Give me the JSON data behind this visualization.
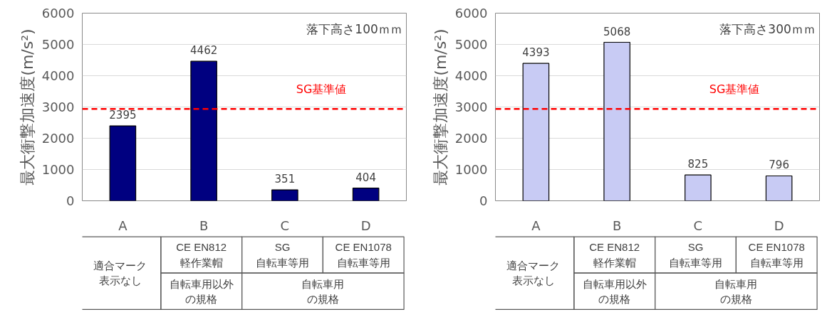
{
  "chart_data": [
    {
      "type": "bar",
      "title": "落下高さ100ｍｍ",
      "ylabel": "最大衝撃加速度(m/s²)",
      "categories": [
        "A",
        "B",
        "C",
        "D"
      ],
      "values": [
        2395,
        4462,
        351,
        404
      ],
      "color": "#000080",
      "ylim": [
        0,
        6000
      ],
      "yticks": [
        0,
        1000,
        2000,
        3000,
        4000,
        5000,
        6000
      ],
      "grid": "y",
      "data_labels": true,
      "ref_lines": [
        {
          "axis": "y",
          "value": 2940,
          "label": "SG基準値",
          "color": "#ff0000",
          "line_style": "dashed"
        }
      ],
      "annotations": [
        "適合マーク表示なし",
        "CE EN812 軽作業帽",
        "SG 自転車等用",
        "CE EN1078 自転車等用",
        "自転車用以外の規格",
        "自転車用の規格"
      ]
    },
    {
      "type": "bar",
      "title": "落下高さ300ｍｍ",
      "ylabel": "最大衝撃加速度(m/s²)",
      "categories": [
        "A",
        "B",
        "C",
        "D"
      ],
      "values": [
        4393,
        5068,
        825,
        796
      ],
      "color": "#c8cbf4",
      "ylim": [
        0,
        6000
      ],
      "yticks": [
        0,
        1000,
        2000,
        3000,
        4000,
        5000,
        6000
      ],
      "grid": "y",
      "data_labels": true,
      "ref_lines": [
        {
          "axis": "y",
          "value": 2940,
          "label": "SG基準値",
          "color": "#ff0000",
          "line_style": "dashed"
        }
      ],
      "annotations": [
        "適合マーク表示なし",
        "CE EN812 軽作業帽",
        "SG 自転車等用",
        "CE EN1078 自転車等用",
        "自転車用以外の規格",
        "自転車用の規格"
      ]
    }
  ]
}
